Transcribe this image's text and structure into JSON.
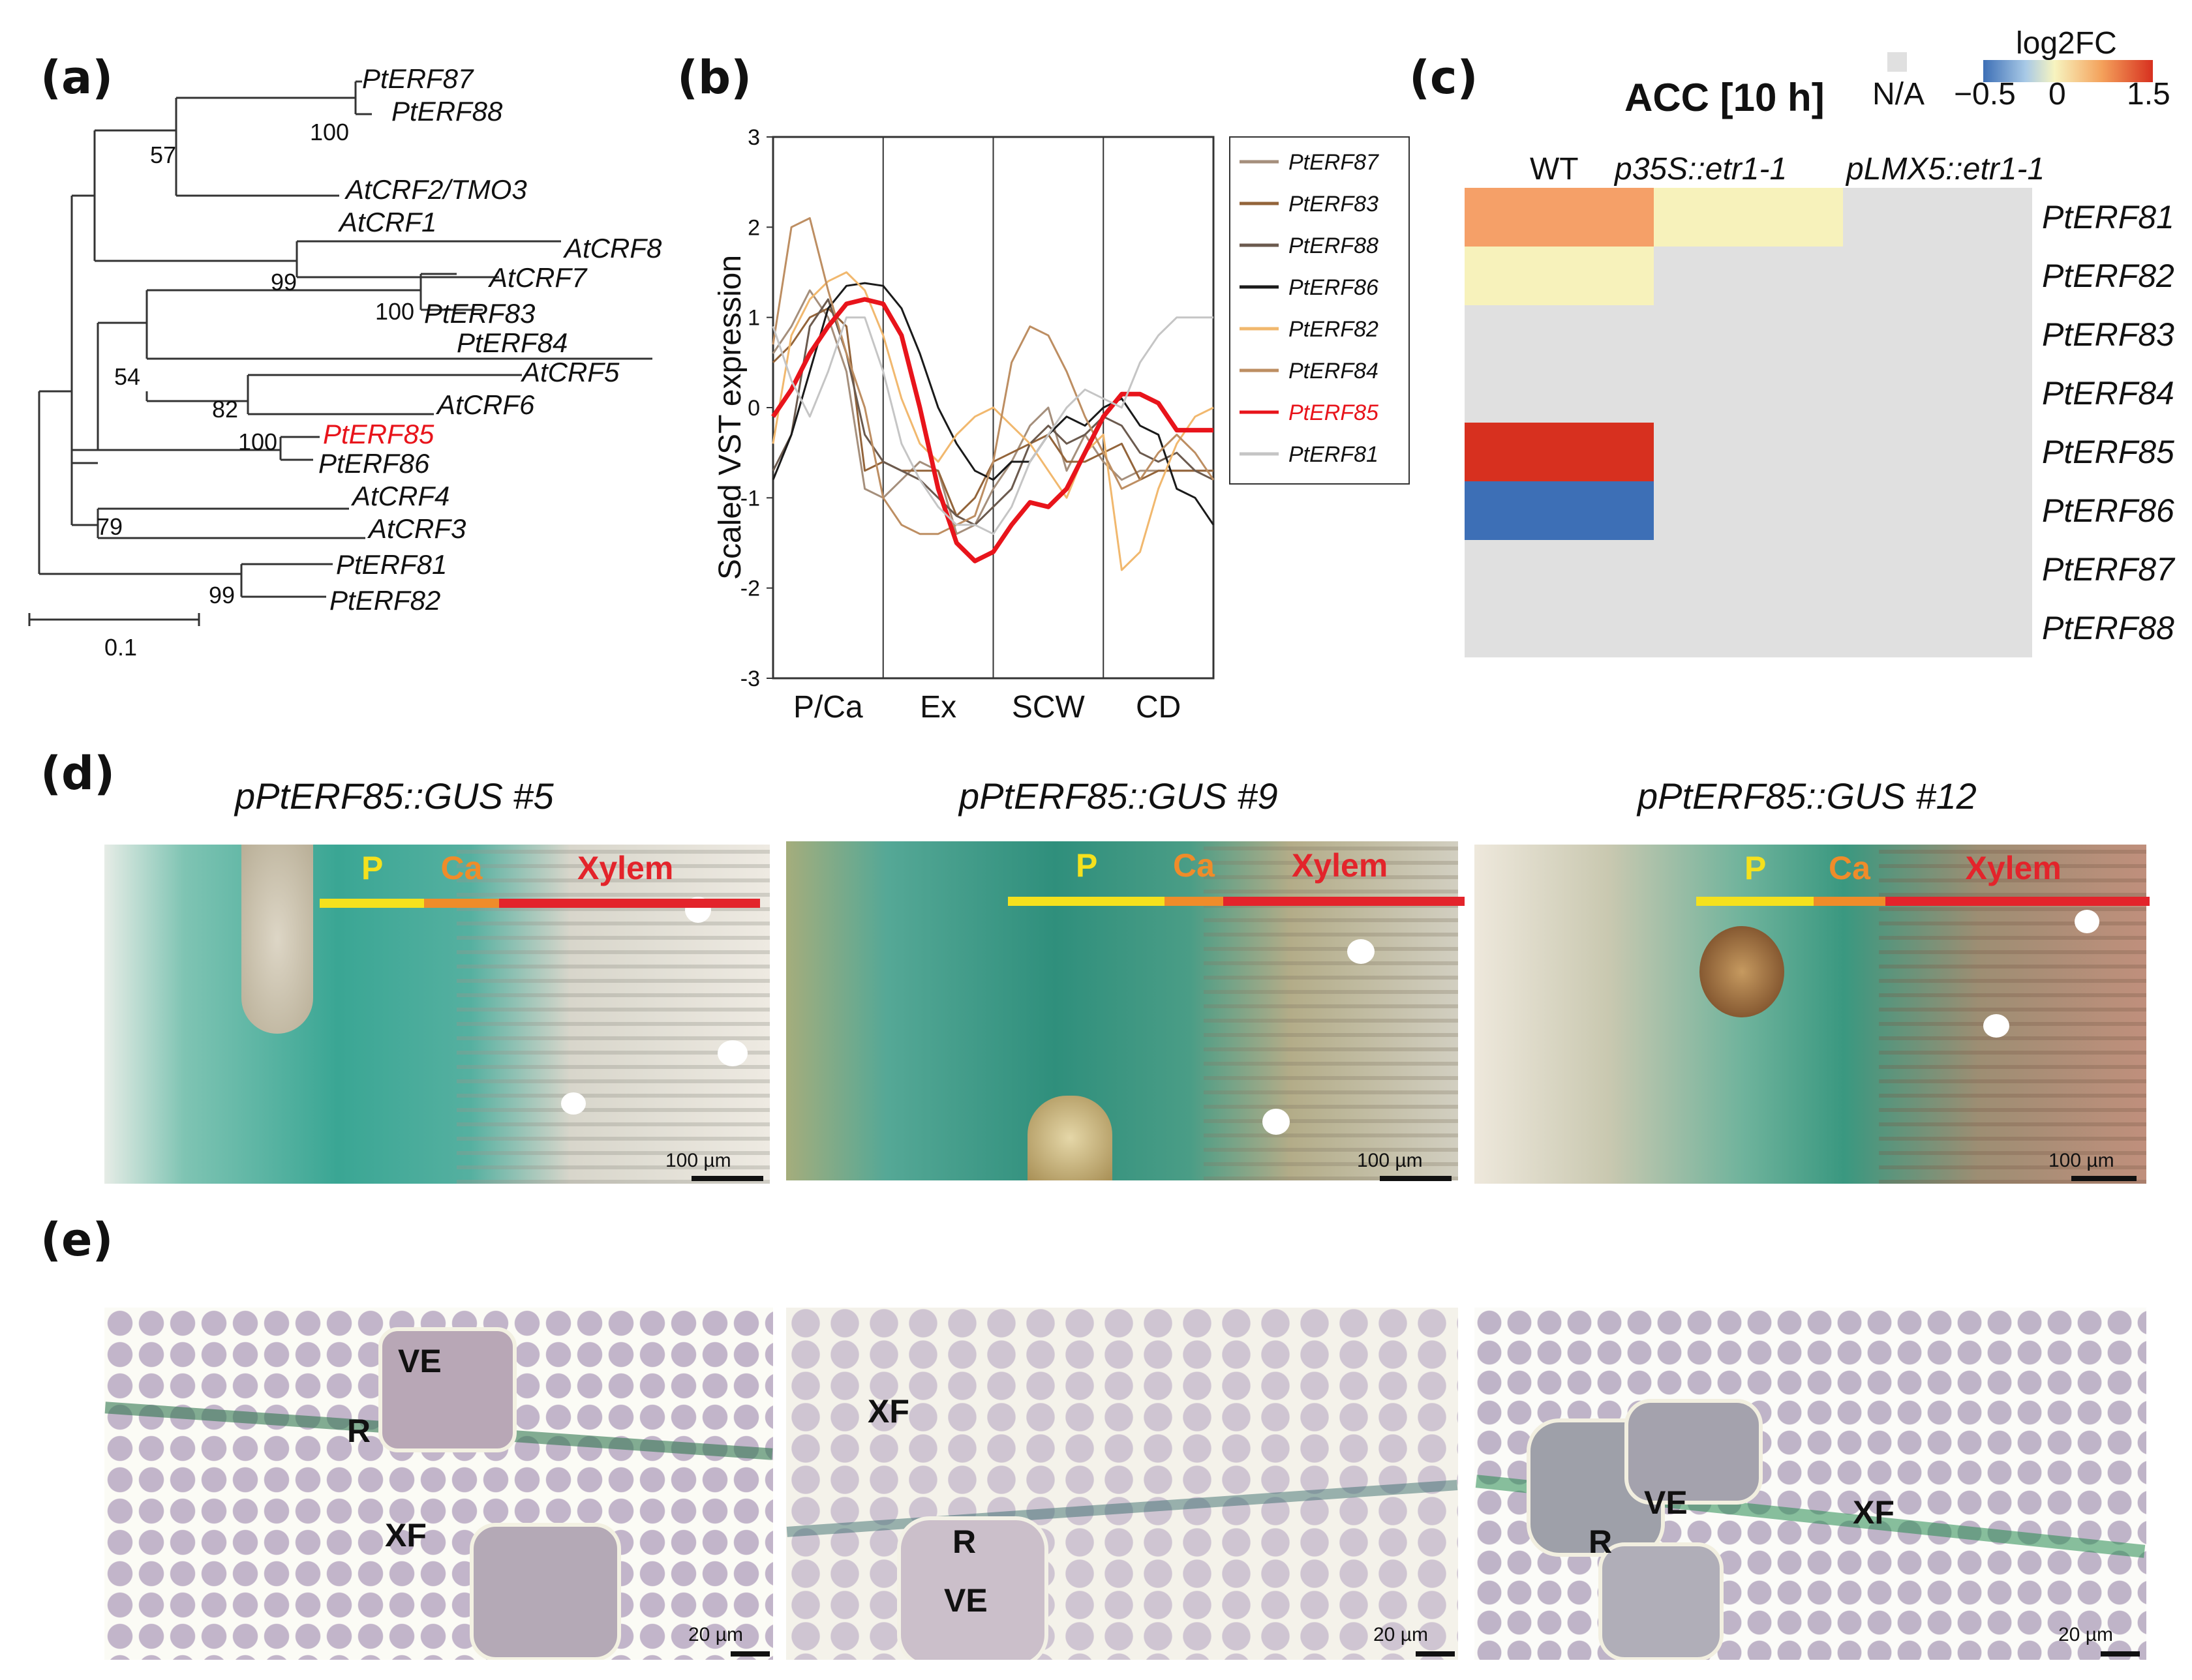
{
  "panels": {
    "a": "(a)",
    "b": "(b)",
    "c": "(c)",
    "d": "(d)",
    "e": "(e)"
  },
  "tree": {
    "leaves": [
      "PtERF87",
      "PtERF88",
      "AtCRF2/TMO3",
      "AtCRF1",
      "AtCRF8",
      "AtCRF7",
      "PtERF83",
      "PtERF84",
      "AtCRF5",
      "AtCRF6",
      "PtERF85",
      "PtERF86",
      "AtCRF4",
      "AtCRF3",
      "PtERF81",
      "PtERF82"
    ],
    "bootstrap": [
      "100",
      "57",
      "99",
      "100",
      "54",
      "82",
      "100",
      "79",
      "99"
    ],
    "scale_label": "0.1",
    "highlight_color": "#e8141b"
  },
  "chart_data": {
    "type": "line",
    "ylabel": "Scaled VST expression",
    "ylim": [
      -3,
      3
    ],
    "yticks": [
      "3",
      "2",
      "1",
      "0",
      "-1",
      "-2",
      "-3"
    ],
    "stages": [
      "P/Ca",
      "Ex",
      "SCW",
      "CD"
    ],
    "x": [
      0,
      1,
      2,
      3,
      4,
      5,
      6,
      7,
      8,
      9,
      10,
      11,
      12,
      13,
      14,
      15,
      16,
      17,
      18,
      19,
      20,
      21,
      22,
      23,
      24
    ],
    "series": [
      {
        "name": "PtERF87",
        "color": "#a58f7c",
        "values": [
          0.6,
          0.9,
          1.3,
          1.0,
          0.4,
          -0.9,
          -1.0,
          -0.8,
          -0.6,
          -0.7,
          -1.4,
          -1.3,
          -0.9,
          -0.6,
          -0.2,
          0.0,
          -0.7,
          -0.3,
          -0.6,
          -0.8,
          -0.7,
          -0.7,
          -0.7,
          -0.7,
          -0.7
        ]
      },
      {
        "name": "PtERF83",
        "color": "#93643a",
        "values": [
          0.5,
          0.7,
          1.0,
          1.1,
          0.9,
          -0.7,
          -0.6,
          -0.7,
          -0.7,
          -0.7,
          -1.2,
          -1.0,
          -0.6,
          -0.5,
          -0.4,
          -0.3,
          -0.6,
          -0.6,
          -0.5,
          -0.4,
          -0.8,
          -0.7,
          -0.7,
          -0.7,
          -0.7
        ]
      },
      {
        "name": "PtERF88",
        "color": "#6b5a4e",
        "values": [
          -0.7,
          -0.3,
          0.9,
          1.2,
          0.6,
          -0.3,
          -0.6,
          -0.7,
          -0.8,
          -1.0,
          -1.2,
          -1.3,
          -1.1,
          -0.9,
          -0.4,
          -0.2,
          -0.4,
          -0.3,
          -0.1,
          -0.2,
          -0.5,
          -0.6,
          -0.5,
          -0.7,
          -0.8
        ]
      },
      {
        "name": "PtERF86",
        "color": "#1a1a1a",
        "values": [
          -0.8,
          -0.3,
          0.4,
          1.1,
          1.35,
          1.38,
          1.35,
          1.1,
          0.6,
          0.0,
          -0.4,
          -0.7,
          -0.8,
          -0.6,
          -0.6,
          -0.3,
          -0.1,
          -0.2,
          0.0,
          0.1,
          -0.2,
          -0.3,
          -0.9,
          -1.0,
          -1.3
        ]
      },
      {
        "name": "PtERF82",
        "color": "#f1b86e",
        "values": [
          -0.4,
          0.8,
          1.2,
          1.4,
          1.5,
          1.3,
          0.8,
          0.1,
          -0.4,
          -0.6,
          -0.3,
          -0.1,
          0.0,
          -0.2,
          -0.4,
          -0.7,
          -1.0,
          -0.5,
          -0.3,
          -1.8,
          -1.6,
          -0.9,
          -0.4,
          -0.1,
          0.0
        ]
      },
      {
        "name": "PtERF84",
        "color": "#bd8e62",
        "values": [
          0.7,
          2.0,
          2.1,
          1.3,
          0.6,
          0.0,
          -1.0,
          -1.3,
          -1.4,
          -1.4,
          -1.3,
          -1.2,
          -0.6,
          0.5,
          0.9,
          0.8,
          0.4,
          -0.1,
          -0.5,
          -0.9,
          -0.8,
          -0.5,
          -0.3,
          -0.5,
          -0.8
        ]
      },
      {
        "name": "PtERF85",
        "color": "#e8141b",
        "values": [
          -0.1,
          0.2,
          0.6,
          0.9,
          1.15,
          1.2,
          1.15,
          0.8,
          0.0,
          -0.9,
          -1.5,
          -1.7,
          -1.6,
          -1.3,
          -1.05,
          -1.1,
          -0.9,
          -0.5,
          -0.1,
          0.15,
          0.15,
          0.05,
          -0.25,
          -0.25,
          -0.25
        ]
      },
      {
        "name": "PtERF81",
        "color": "#c5c5c5",
        "values": [
          0.9,
          0.3,
          -0.1,
          0.4,
          1.0,
          1.0,
          0.4,
          -0.4,
          -0.8,
          -1.1,
          -1.3,
          -1.3,
          -1.4,
          -1.1,
          -0.6,
          -0.3,
          0.0,
          0.2,
          0.1,
          0.0,
          0.5,
          0.8,
          1.0,
          1.0,
          1.0
        ]
      }
    ]
  },
  "heatmap": {
    "title": "ACC [10 h]",
    "na_label": "N/A",
    "legend_title": "log2FC",
    "legend_ticks": [
      "−0.5",
      "0",
      "1.5"
    ],
    "columns": [
      "WT",
      "p35S::etr1-1",
      "pLMX5::etr1-1"
    ],
    "rows": [
      "PtERF81",
      "PtERF82",
      "PtERF83",
      "PtERF84",
      "PtERF85",
      "PtERF86",
      "PtERF87",
      "PtERF88"
    ],
    "values": [
      [
        0.9,
        0.2,
        null
      ],
      [
        0.2,
        null,
        null
      ],
      [
        null,
        null,
        null
      ],
      [
        null,
        null,
        null
      ],
      [
        1.5,
        null,
        null
      ],
      [
        -0.5,
        null,
        null
      ],
      [
        null,
        null,
        null
      ],
      [
        null,
        null,
        null
      ]
    ],
    "na_color": "#e0e0e0"
  },
  "panel_d": {
    "constructs": [
      "pPtERF85::GUS #5",
      "pPtERF85::GUS #9",
      "pPtERF85::GUS #12"
    ],
    "zones": [
      "P",
      "Ca",
      "Xylem"
    ],
    "zone_colors": [
      "#f5e11d",
      "#ef8c2a",
      "#e3242b"
    ],
    "scale": "100 µm"
  },
  "panel_e": {
    "images": [
      {
        "labels": [
          "VE",
          "R",
          "XF"
        ]
      },
      {
        "labels": [
          "XF",
          "R",
          "VE"
        ]
      },
      {
        "labels": [
          "VE",
          "R",
          "XF"
        ]
      }
    ],
    "scale": "20 µm"
  }
}
